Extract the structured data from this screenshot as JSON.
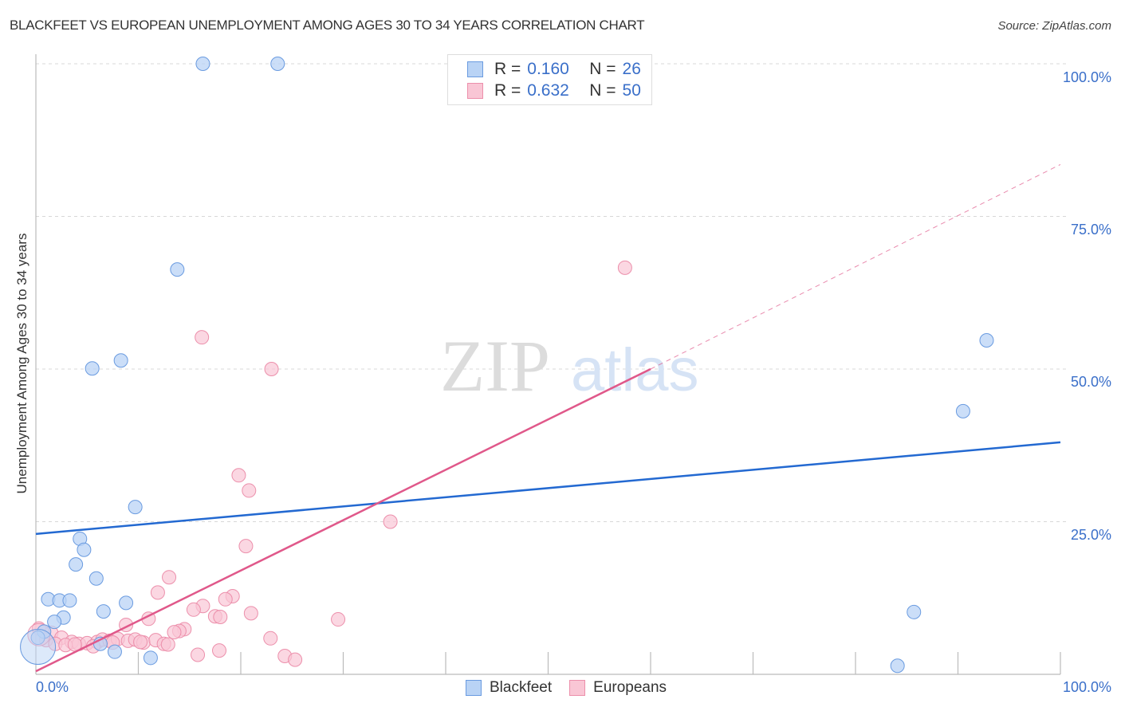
{
  "header": {
    "title": "BLACKFEET VS EUROPEAN UNEMPLOYMENT AMONG AGES 30 TO 34 YEARS CORRELATION CHART",
    "source": "Source: ZipAtlas.com"
  },
  "watermark": {
    "zip": "ZIP",
    "atlas": "atlas"
  },
  "legend": {
    "rows": [
      {
        "r_label": "R =",
        "r_value": "0.160",
        "n_label": "N =",
        "n_value": "26"
      },
      {
        "r_label": "R =",
        "r_value": "0.632",
        "n_label": "N =",
        "n_value": "50"
      }
    ]
  },
  "axes": {
    "ylabel": "Unemployment Among Ages 30 to 34 years",
    "yticks": [
      "100.0%",
      "75.0%",
      "50.0%",
      "25.0%"
    ],
    "xticks": [
      "0.0%",
      "100.0%"
    ]
  },
  "bottom_legend": {
    "series": [
      "Blackfeet",
      "Europeans"
    ]
  },
  "colors": {
    "blackfeet_fill": "#b9d3f5",
    "blackfeet_stroke": "#6a9be0",
    "blackfeet_line": "#2369d1",
    "europeans_fill": "#f9c6d5",
    "europeans_stroke": "#ec8fab",
    "europeans_line": "#e0588a",
    "tick_text": "#3a6fc9"
  },
  "chart_data": {
    "type": "scatter",
    "title": "BLACKFEET VS EUROPEAN UNEMPLOYMENT AMONG AGES 30 TO 34 YEARS CORRELATION CHART",
    "xlabel": "",
    "ylabel": "Unemployment Among Ages 30 to 34 years",
    "xlim": [
      0,
      100
    ],
    "ylim": [
      0,
      100
    ],
    "grid": true,
    "legend_position": "top-center",
    "series": [
      {
        "name": "Blackfeet",
        "R": 0.16,
        "N": 26,
        "trend": {
          "x0": 0,
          "y0": 23.0,
          "x1": 100,
          "y1": 38.0
        },
        "points": [
          [
            16.3,
            100
          ],
          [
            23.6,
            100
          ],
          [
            13.8,
            66.3
          ],
          [
            5.5,
            50.1
          ],
          [
            8.3,
            51.4
          ],
          [
            92.8,
            54.7
          ],
          [
            90.5,
            43.1
          ],
          [
            9.7,
            27.4
          ],
          [
            4.3,
            22.2
          ],
          [
            4.7,
            20.4
          ],
          [
            3.9,
            18.0
          ],
          [
            5.9,
            15.7
          ],
          [
            1.2,
            12.3
          ],
          [
            2.3,
            12.1
          ],
          [
            3.3,
            12.1
          ],
          [
            8.8,
            11.7
          ],
          [
            6.6,
            10.3
          ],
          [
            2.7,
            9.3
          ],
          [
            1.8,
            8.6
          ],
          [
            85.7,
            10.2
          ],
          [
            0.8,
            7.0
          ],
          [
            0.2,
            6.0
          ],
          [
            6.3,
            5.0
          ],
          [
            7.7,
            3.7
          ],
          [
            11.2,
            2.7
          ],
          [
            84.1,
            1.4
          ]
        ]
      },
      {
        "name": "Europeans",
        "R": 0.632,
        "N": 50,
        "trend": {
          "x0": 0,
          "y0": 0.5,
          "x1": 60,
          "y1": 50.0,
          "dashed_to": {
            "x": 100,
            "y": 83.5
          }
        },
        "points": [
          [
            57.5,
            66.6
          ],
          [
            16.2,
            55.2
          ],
          [
            23.0,
            50.0
          ],
          [
            19.8,
            32.6
          ],
          [
            20.8,
            30.1
          ],
          [
            34.6,
            25.0
          ],
          [
            20.5,
            21.0
          ],
          [
            13.0,
            15.9
          ],
          [
            11.9,
            13.4
          ],
          [
            19.2,
            12.8
          ],
          [
            18.5,
            12.3
          ],
          [
            16.3,
            11.2
          ],
          [
            15.4,
            10.6
          ],
          [
            21.0,
            10.0
          ],
          [
            29.5,
            9.0
          ],
          [
            11.0,
            9.1
          ],
          [
            17.5,
            9.5
          ],
          [
            18.0,
            9.4
          ],
          [
            8.8,
            8.1
          ],
          [
            14.5,
            7.4
          ],
          [
            14.0,
            7.1
          ],
          [
            13.5,
            6.9
          ],
          [
            0.3,
            7.5
          ],
          [
            1.5,
            6.8
          ],
          [
            2.5,
            6.0
          ],
          [
            3.5,
            5.3
          ],
          [
            4.2,
            5.0
          ],
          [
            5.0,
            5.1
          ],
          [
            6.0,
            5.3
          ],
          [
            6.5,
            5.7
          ],
          [
            7.2,
            5.5
          ],
          [
            8.0,
            5.8
          ],
          [
            9.0,
            5.5
          ],
          [
            9.7,
            5.7
          ],
          [
            10.5,
            5.2
          ],
          [
            11.7,
            5.6
          ],
          [
            12.5,
            5.0
          ],
          [
            12.9,
            4.9
          ],
          [
            1.0,
            5.6
          ],
          [
            1.9,
            5.0
          ],
          [
            2.9,
            4.8
          ],
          [
            3.8,
            4.9
          ],
          [
            5.6,
            4.6
          ],
          [
            7.5,
            5.2
          ],
          [
            17.9,
            3.9
          ],
          [
            22.9,
            5.9
          ],
          [
            15.8,
            3.2
          ],
          [
            24.3,
            3.0
          ],
          [
            25.3,
            2.4
          ],
          [
            10.2,
            5.3
          ]
        ]
      }
    ]
  }
}
